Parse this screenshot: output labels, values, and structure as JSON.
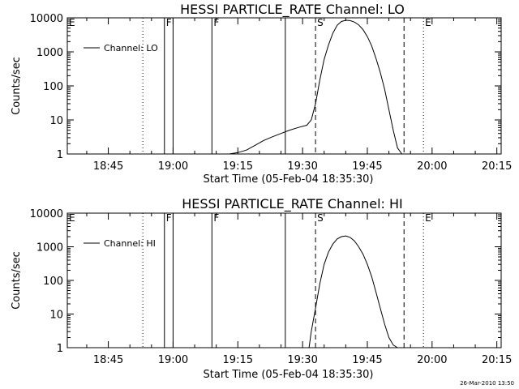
{
  "chart_data": [
    {
      "type": "line",
      "title": "HESSI PARTICLE_RATE Channel: LO",
      "xlabel": "Start Time (05-Feb-04 18:35:30)",
      "ylabel": "Counts/sec",
      "yscale": "log",
      "ylim": [
        1,
        10000
      ],
      "xlim": [
        "18:35:30",
        "20:16:00"
      ],
      "x_ticks": [
        "18:45",
        "19:00",
        "19:15",
        "19:30",
        "19:45",
        "20:00",
        "20:15"
      ],
      "y_ticks": [
        "1",
        "10",
        "100",
        "1000",
        "10000"
      ],
      "legend": {
        "position": "top-left",
        "entries": [
          "Channel: LO"
        ]
      },
      "markers": [
        {
          "label": "E",
          "time": "18:35:30",
          "style": "dotted"
        },
        {
          "label": "",
          "time": "18:53:00",
          "style": "dotted"
        },
        {
          "label": "F",
          "time": "18:58:00",
          "style": "solid"
        },
        {
          "label": "",
          "time": "19:00:00",
          "style": "solid"
        },
        {
          "label": "F",
          "time": "19:09:00",
          "style": "solid"
        },
        {
          "label": "",
          "time": "19:26:00",
          "style": "solid"
        },
        {
          "label": "S",
          "time": "19:33:00",
          "style": "dashed"
        },
        {
          "label": "",
          "time": "19:53:30",
          "style": "dashed"
        },
        {
          "label": "E",
          "time": "19:58:00",
          "style": "dotted"
        },
        {
          "label": "",
          "time": "20:16:00",
          "style": "dotted"
        }
      ],
      "series": [
        {
          "name": "Channel: LO",
          "x": [
            "19:10:00",
            "19:13:00",
            "19:15:00",
            "19:17:00",
            "19:19:00",
            "19:21:00",
            "19:23:00",
            "19:25:00",
            "19:27:00",
            "19:29:00",
            "19:31:00",
            "19:32:00",
            "19:33:00",
            "19:34:00",
            "19:35:00",
            "19:36:00",
            "19:37:00",
            "19:38:00",
            "19:39:00",
            "19:40:00",
            "19:41:00",
            "19:42:00",
            "19:43:00",
            "19:44:00",
            "19:45:00",
            "19:46:00",
            "19:47:00",
            "19:48:00",
            "19:49:00",
            "19:50:00",
            "19:51:00",
            "19:52:00",
            "19:53:00"
          ],
          "values": [
            1,
            1,
            1.1,
            1.3,
            1.8,
            2.5,
            3.2,
            4,
            5,
            6,
            7,
            10,
            30,
            150,
            600,
            1600,
            3500,
            6000,
            7800,
            8500,
            8300,
            7500,
            6200,
            4500,
            2800,
            1500,
            650,
            250,
            80,
            20,
            5,
            1.5,
            1
          ]
        }
      ]
    },
    {
      "type": "line",
      "title": "HESSI PARTICLE_RATE Channel: HI",
      "xlabel": "Start Time (05-Feb-04 18:35:30)",
      "ylabel": "Counts/sec",
      "yscale": "log",
      "ylim": [
        1,
        10000
      ],
      "xlim": [
        "18:35:30",
        "20:16:00"
      ],
      "x_ticks": [
        "18:45",
        "19:00",
        "19:15",
        "19:30",
        "19:45",
        "20:00",
        "20:15"
      ],
      "y_ticks": [
        "1",
        "10",
        "100",
        "1000",
        "10000"
      ],
      "legend": {
        "position": "top-left",
        "entries": [
          "Channel: HI"
        ]
      },
      "markers": [
        {
          "label": "E",
          "time": "18:35:30",
          "style": "dotted"
        },
        {
          "label": "",
          "time": "18:53:00",
          "style": "dotted"
        },
        {
          "label": "F",
          "time": "18:58:00",
          "style": "solid"
        },
        {
          "label": "",
          "time": "19:00:00",
          "style": "solid"
        },
        {
          "label": "F",
          "time": "19:09:00",
          "style": "solid"
        },
        {
          "label": "",
          "time": "19:26:00",
          "style": "solid"
        },
        {
          "label": "S",
          "time": "19:33:00",
          "style": "dashed"
        },
        {
          "label": "",
          "time": "19:53:30",
          "style": "dashed"
        },
        {
          "label": "E",
          "time": "19:58:00",
          "style": "dotted"
        },
        {
          "label": "",
          "time": "20:16:00",
          "style": "dotted"
        }
      ],
      "series": [
        {
          "name": "Channel: HI",
          "x": [
            "19:31:30",
            "19:32:00",
            "19:33:00",
            "19:34:00",
            "19:35:00",
            "19:36:00",
            "19:37:00",
            "19:38:00",
            "19:39:00",
            "19:40:00",
            "19:41:00",
            "19:42:00",
            "19:43:00",
            "19:44:00",
            "19:45:00",
            "19:46:00",
            "19:47:00",
            "19:48:00",
            "19:49:00",
            "19:50:00",
            "19:51:00",
            "19:52:00"
          ],
          "values": [
            1,
            3,
            15,
            80,
            300,
            700,
            1200,
            1700,
            2000,
            2100,
            1900,
            1500,
            1000,
            600,
            300,
            130,
            45,
            15,
            5,
            2,
            1.2,
            1
          ]
        }
      ]
    }
  ],
  "timestamp": "26-Mar-2010 13:50"
}
